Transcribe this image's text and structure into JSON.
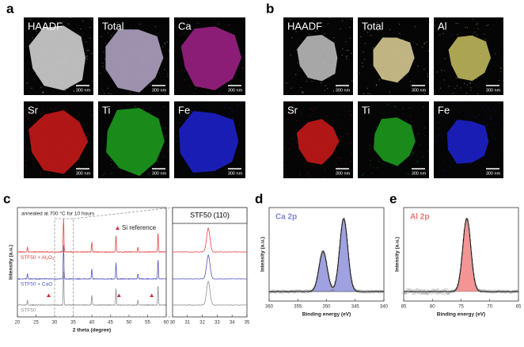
{
  "panel_a": {
    "label": "a",
    "scale_bar": "300 nm",
    "tiles": [
      {
        "label": "HAADF",
        "tint": "#dcdcdc"
      },
      {
        "label": "Total",
        "tint": "#b8aacb"
      },
      {
        "label": "Ca",
        "tint": "#a3228c"
      },
      {
        "label": "Sr",
        "tint": "#d01a1a"
      },
      {
        "label": "Ti",
        "tint": "#1ea21e"
      },
      {
        "label": "Fe",
        "tint": "#1e22d2"
      }
    ]
  },
  "panel_b": {
    "label": "b",
    "scale_bar": "300 nm",
    "tiles": [
      {
        "label": "HAADF",
        "tint": "#c4c4c4"
      },
      {
        "label": "Total",
        "tint": "#e2d49a"
      },
      {
        "label": "Al",
        "tint": "#c9c262"
      },
      {
        "label": "Sr",
        "tint": "#d01a1a"
      },
      {
        "label": "Ti",
        "tint": "#1ea21e"
      },
      {
        "label": "Fe",
        "tint": "#1e22d2"
      }
    ]
  },
  "panel_c": {
    "label": "c",
    "annotation": "annealed at 700 °C for 10 hours",
    "legend": "Si reference",
    "legend_color": "#d03040",
    "x_label": "2 theta (degree)",
    "y_label": "Intensity (a.u.)",
    "xlim": [
      20,
      60
    ],
    "xticks": [
      20,
      25,
      30,
      35,
      40,
      45,
      50,
      55,
      60
    ],
    "series": [
      {
        "name_parts": [
          "STF50 + Al",
          "2",
          "O",
          "3"
        ],
        "color": "#e84545"
      },
      {
        "name": "STF50 + CaO",
        "color": "#5555c2"
      },
      {
        "name": "STF50",
        "color": "#8f8f8f"
      }
    ],
    "peaks": [
      {
        "x": 22.7,
        "h": 0.15
      },
      {
        "x": 32.4,
        "h": 1.0
      },
      {
        "x": 40.0,
        "h": 0.3
      },
      {
        "x": 46.5,
        "h": 0.5
      },
      {
        "x": 52.4,
        "h": 0.15
      },
      {
        "x": 57.8,
        "h": 0.6
      }
    ],
    "si_peaks": [
      28.4,
      47.3,
      56.1
    ],
    "inset": {
      "title": "STF50 (110)",
      "xlim": [
        30,
        35
      ],
      "xticks": [
        30,
        31,
        32,
        33,
        34,
        35
      ]
    }
  },
  "panel_d": {
    "label": "d",
    "title": "Ca 2p",
    "color": "#7f82d6",
    "x_label": "Binding energy (eV)",
    "y_label": "Intensity (a.u.)",
    "xlim": [
      360,
      340
    ],
    "xticks": [
      360,
      355,
      350,
      345,
      340
    ],
    "components": [
      {
        "x": 350.6,
        "h": 0.55
      },
      {
        "x": 347.0,
        "h": 1.0
      }
    ]
  },
  "panel_e": {
    "label": "e",
    "title": "Al 2p",
    "color": "#f07272",
    "x_label": "Binding energy (eV)",
    "y_label": "Intensity (a.u.)",
    "xlim": [
      85,
      65
    ],
    "xticks": [
      85,
      80,
      75,
      70,
      65
    ],
    "components": [
      {
        "x": 74.0,
        "h": 1.0
      }
    ]
  }
}
